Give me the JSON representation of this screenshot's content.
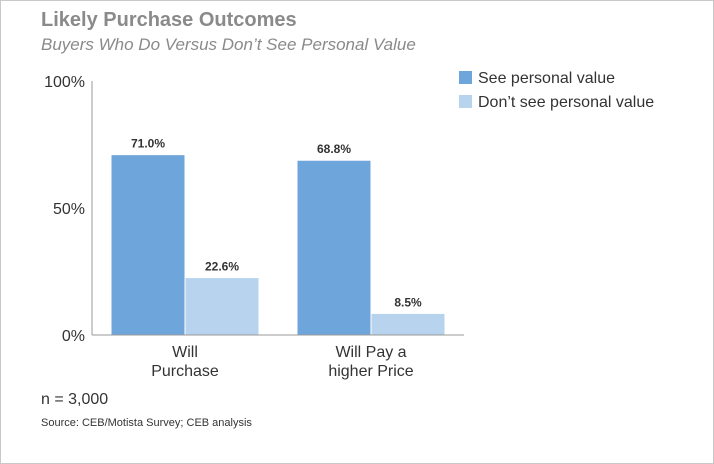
{
  "chart_data": {
    "type": "bar",
    "title": "Likely Purchase Outcomes",
    "subtitle": "Buyers Who Do Versus Don’t See Personal Value",
    "categories": [
      [
        "Will",
        "Purchase"
      ],
      [
        "Will Pay a",
        "higher Price"
      ]
    ],
    "series": [
      {
        "name": "See personal value",
        "values": [
          71.0,
          68.8
        ],
        "labels": [
          "71.0%",
          "68.8%"
        ],
        "color": "#6ea6dc"
      },
      {
        "name": "Don’t see personal value",
        "values": [
          22.6,
          8.5
        ],
        "labels": [
          "22.6%",
          "8.5%"
        ],
        "color": "#b7d3ee"
      }
    ],
    "ylim": [
      0,
      100
    ],
    "yticks": [
      {
        "value": 0,
        "label": "0%"
      },
      {
        "value": 50,
        "label": "50%"
      },
      {
        "value": 100,
        "label": "100%"
      }
    ],
    "grid": false,
    "legend_position": "top-right"
  },
  "footer": {
    "note": "n = 3,000",
    "source": "Source: CEB/Motista Survey; CEB analysis"
  }
}
